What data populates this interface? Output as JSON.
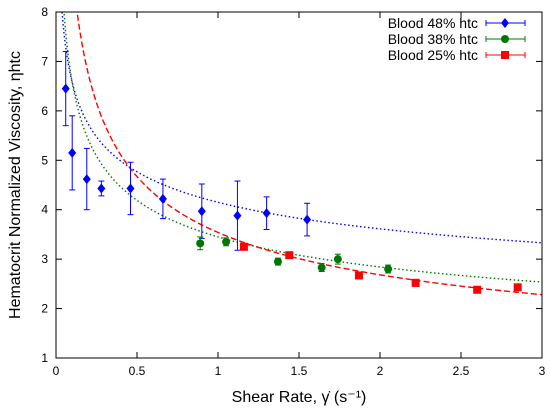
{
  "chart_data": {
    "type": "scatter",
    "xlabel": "Shear Rate, γ̇ (s⁻¹)",
    "ylabel": "Hematocrit Normalized Viscosity, ηhtc",
    "xlim": [
      0,
      3
    ],
    "ylim": [
      1,
      8
    ],
    "x_ticks": [
      "0",
      "0.5",
      "1",
      "1.5",
      "2",
      "2.5",
      "3"
    ],
    "y_ticks": [
      "1",
      "2",
      "3",
      "4",
      "5",
      "6",
      "7",
      "8"
    ],
    "grid": false,
    "legend_position": "top-right",
    "series": [
      {
        "name": "Blood 48% htc",
        "color": "#0000ff",
        "marker": "diamond",
        "fit_style": "dotted",
        "points": [
          {
            "x": 0.06,
            "y": 6.45,
            "err": 0.75
          },
          {
            "x": 0.1,
            "y": 5.15,
            "err": 0.75
          },
          {
            "x": 0.19,
            "y": 4.62,
            "err": 0.62
          },
          {
            "x": 0.28,
            "y": 4.43,
            "err": 0.15
          },
          {
            "x": 0.46,
            "y": 4.43,
            "err": 0.53
          },
          {
            "x": 0.66,
            "y": 4.22,
            "err": 0.4
          },
          {
            "x": 0.9,
            "y": 3.97,
            "err": 0.55
          },
          {
            "x": 1.12,
            "y": 3.88,
            "err": 0.7
          },
          {
            "x": 1.3,
            "y": 3.93,
            "err": 0.33
          },
          {
            "x": 1.55,
            "y": 3.8,
            "err": 0.33
          }
        ],
        "fit": {
          "a": 4.15,
          "b": -0.2
        }
      },
      {
        "name": "Blood 38% htc",
        "color": "#007700",
        "marker": "circle",
        "fit_style": "dotted",
        "points": [
          {
            "x": 0.89,
            "y": 3.32,
            "err": 0.13
          },
          {
            "x": 1.05,
            "y": 3.35,
            "err": 0.08
          },
          {
            "x": 1.37,
            "y": 2.95,
            "err": 0.07
          },
          {
            "x": 1.64,
            "y": 2.83,
            "err": 0.08
          },
          {
            "x": 1.74,
            "y": 3.0,
            "err": 0.1
          },
          {
            "x": 2.05,
            "y": 2.8,
            "err": 0.08
          }
        ],
        "fit": {
          "a": 3.45,
          "b": -0.28
        }
      },
      {
        "name": "Blood 25% htc",
        "color": "#ff0000",
        "marker": "square",
        "fit_style": "dashed",
        "points": [
          {
            "x": 1.16,
            "y": 3.25,
            "err": 0.05
          },
          {
            "x": 1.44,
            "y": 3.08,
            "err": 0.05
          },
          {
            "x": 1.87,
            "y": 2.67,
            "err": 0.07
          },
          {
            "x": 2.22,
            "y": 2.52,
            "err": 0.07
          },
          {
            "x": 2.6,
            "y": 2.38,
            "err": 0.04
          },
          {
            "x": 2.85,
            "y": 2.43,
            "err": 0.06
          }
        ],
        "fit": {
          "a": 3.54,
          "b": -0.4
        }
      }
    ]
  }
}
